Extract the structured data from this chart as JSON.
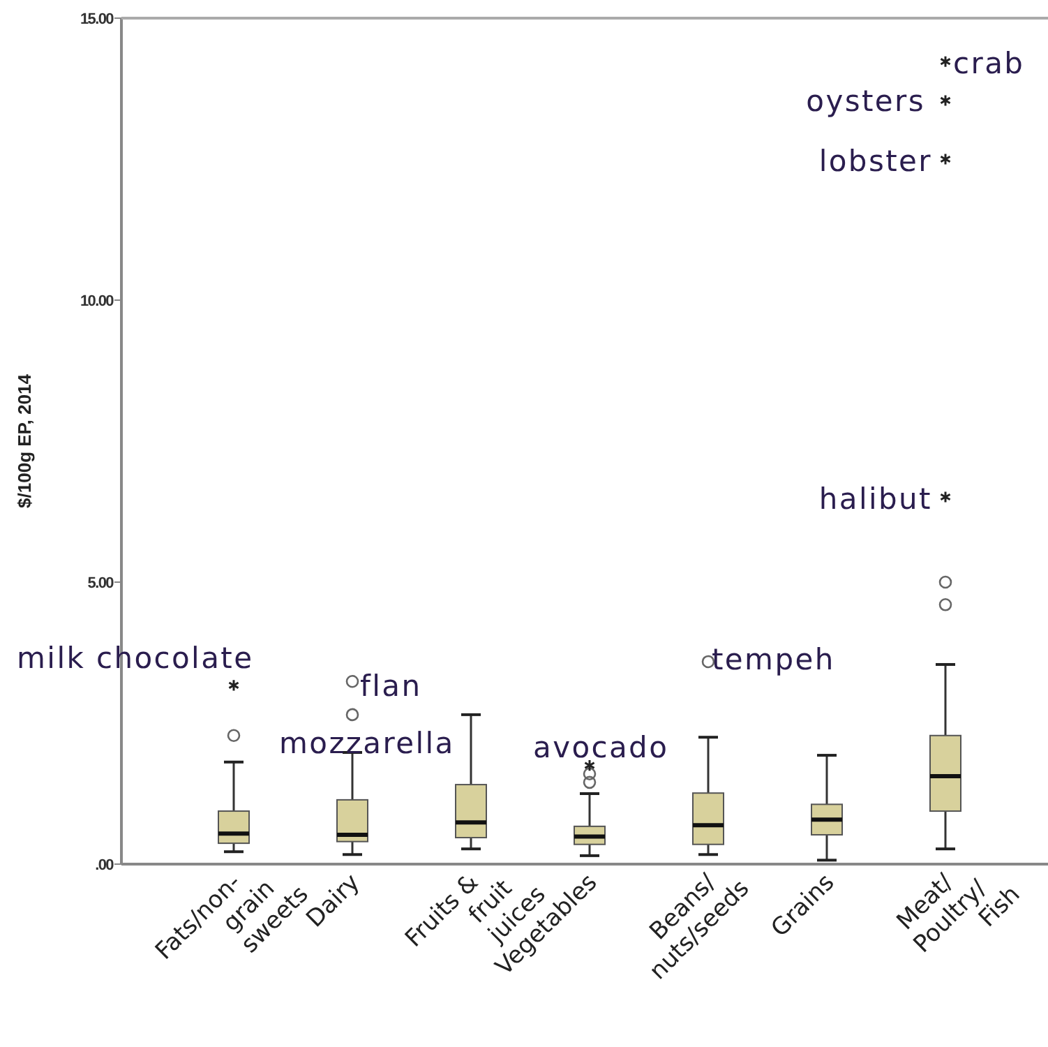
{
  "chart_data": {
    "type": "box",
    "ylabel": "$/100g EP, 2014",
    "categories": [
      "Fats/non-grain sweets",
      "Dairy",
      "Fruits & fruit juices",
      "Vegetables",
      "Beans/nuts/seeds",
      "Grains",
      "Meat/Poultry/Fish"
    ],
    "color": "#d8d19c",
    "boxes": [
      {
        "low": 0.22,
        "q1": 0.37,
        "median": 0.54,
        "q3": 0.94,
        "high": 1.81,
        "outliers": [
          2.28,
          3.17
        ]
      },
      {
        "low": 0.17,
        "q1": 0.4,
        "median": 0.52,
        "q3": 1.14,
        "high": 1.98,
        "outliers": [
          2.65,
          3.24
        ]
      },
      {
        "low": 0.27,
        "q1": 0.47,
        "median": 0.74,
        "q3": 1.41,
        "high": 2.65
      },
      {
        "low": 0.15,
        "q1": 0.35,
        "median": 0.49,
        "q3": 0.67,
        "high": 1.25,
        "outliers": [
          1.45,
          1.6,
          1.75
        ]
      },
      {
        "low": 0.17,
        "q1": 0.35,
        "median": 0.69,
        "q3": 1.26,
        "high": 2.25,
        "outliers": [
          3.59
        ]
      },
      {
        "low": 0.07,
        "q1": 0.52,
        "median": 0.79,
        "q3": 1.06,
        "high": 1.93
      },
      {
        "low": 0.27,
        "q1": 0.94,
        "median": 1.56,
        "q3": 2.28,
        "high": 3.54,
        "outliers": [
          4.6,
          5.0,
          6.51,
          12.5,
          13.54,
          14.23
        ]
      }
    ],
    "ylim": [
      0,
      15
    ],
    "yticks": [
      {
        "value": 0,
        "label": ".00"
      },
      {
        "value": 5,
        "label": "5.00"
      },
      {
        "value": 10,
        "label": "10.00"
      },
      {
        "value": 15,
        "label": "15.00"
      }
    ],
    "grid": false,
    "annotations": [
      "milk chocolate",
      "flan",
      "mozzarella",
      "avocado",
      "tempeh",
      "halibut",
      "lobster",
      "oysters",
      "crab"
    ]
  }
}
